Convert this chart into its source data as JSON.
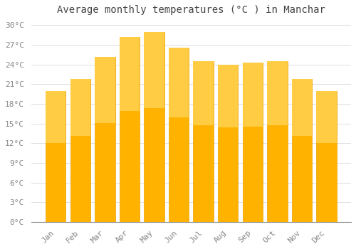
{
  "title": "Average monthly temperatures (°C ) in Manchar",
  "months": [
    "Jan",
    "Feb",
    "Mar",
    "Apr",
    "May",
    "Jun",
    "Jul",
    "Aug",
    "Sep",
    "Oct",
    "Nov",
    "Dec"
  ],
  "values": [
    20.0,
    21.8,
    25.2,
    28.2,
    29.0,
    26.6,
    24.5,
    24.0,
    24.3,
    24.5,
    21.8,
    20.0
  ],
  "bar_color_top": "#FFC830",
  "bar_color_bottom": "#FFB300",
  "bar_edge_color": "#E8A000",
  "background_color": "#FFFFFF",
  "grid_color": "#DDDDDD",
  "ylim": [
    0,
    31
  ],
  "yticks": [
    0,
    3,
    6,
    9,
    12,
    15,
    18,
    21,
    24,
    27,
    30
  ],
  "ytick_labels": [
    "0°C",
    "3°C",
    "6°C",
    "9°C",
    "12°C",
    "15°C",
    "18°C",
    "21°C",
    "24°C",
    "27°C",
    "30°C"
  ],
  "title_fontsize": 10,
  "tick_fontsize": 8,
  "title_color": "#444444",
  "tick_color": "#888888",
  "bar_width": 0.82
}
